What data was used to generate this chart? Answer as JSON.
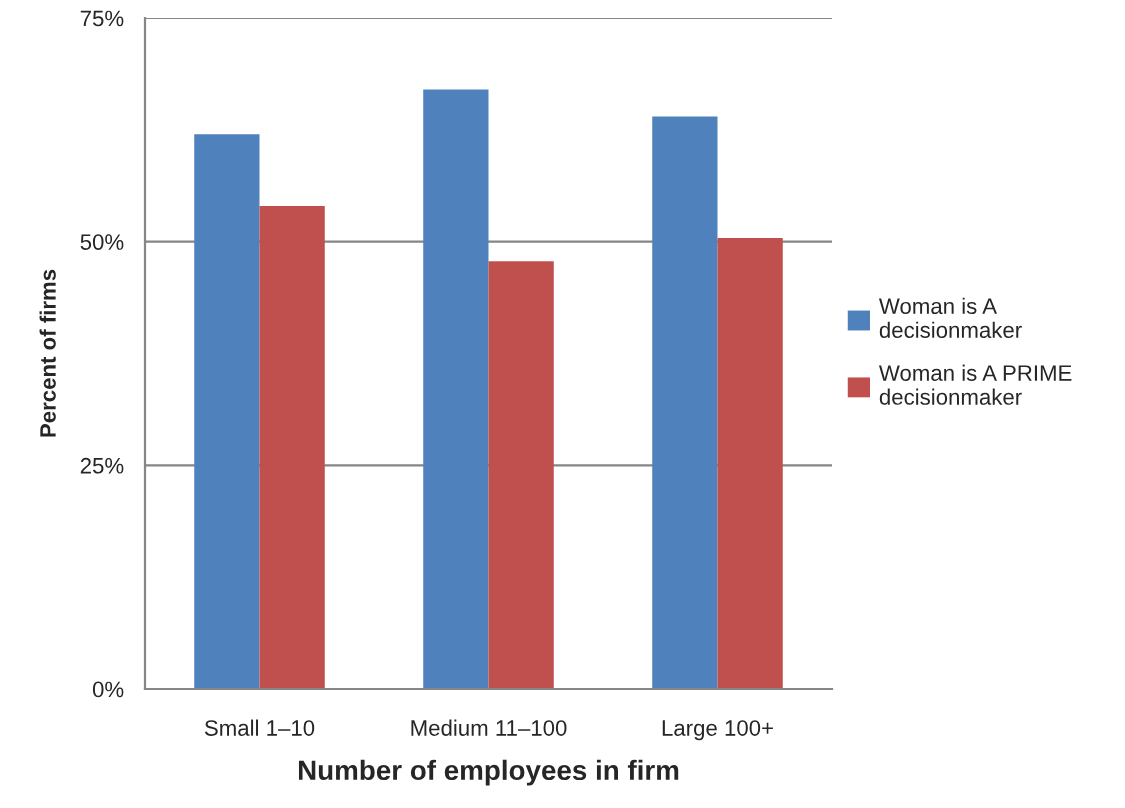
{
  "chart_data": {
    "type": "bar",
    "xlabel": "Number of employees in firm",
    "ylabel": "Percent of firms",
    "categories": [
      "Small 1–10",
      "Medium 11–100",
      "Large 100+"
    ],
    "series": [
      {
        "name": "Woman is A decisionmaker",
        "color": "#4f81bd",
        "values": [
          62,
          67,
          64
        ]
      },
      {
        "name": "Woman is A PRIME decisionmaker",
        "color": "#c0504d",
        "values": [
          54,
          47.8,
          50.4
        ]
      }
    ],
    "ylim": [
      0,
      75
    ],
    "yticks": [
      {
        "value": 0,
        "label": "0%"
      },
      {
        "value": 25,
        "label": "25%"
      },
      {
        "value": 50,
        "label": "50%"
      },
      {
        "value": 75,
        "label": "75%"
      }
    ],
    "grid": "y",
    "legend": "right"
  }
}
